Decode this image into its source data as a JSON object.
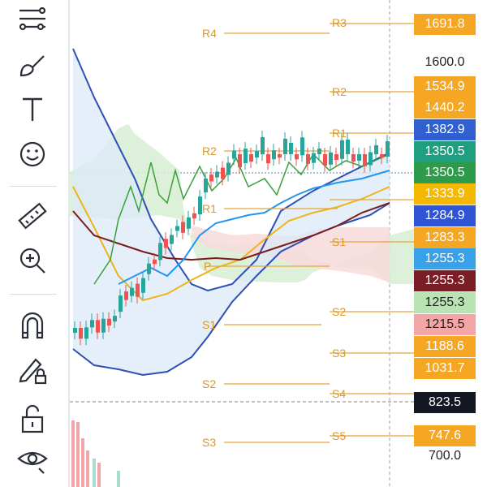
{
  "toolbar": {
    "tools": [
      {
        "name": "trend-line-tool-icon"
      },
      {
        "name": "brush-tool-icon"
      },
      {
        "name": "text-tool-icon"
      },
      {
        "name": "emoji-tool-icon"
      },
      {
        "name": "ruler-tool-icon"
      },
      {
        "name": "zoom-in-tool-icon"
      },
      {
        "name": "magnet-tool-icon"
      },
      {
        "name": "lock-drawings-tool-icon"
      },
      {
        "name": "unlock-tool-icon"
      },
      {
        "name": "hide-drawings-tool-icon"
      }
    ]
  },
  "price_axis": {
    "labels": [
      "1600.0",
      "700.0"
    ],
    "tags": [
      {
        "value": "1691.8",
        "color": "#f5a623",
        "text_color": "#ffffff"
      },
      {
        "value": "1534.9",
        "color": "#f5a623",
        "text_color": "#ffffff"
      },
      {
        "value": "1440.2",
        "color": "#f5a623",
        "text_color": "#ffffff"
      },
      {
        "value": "1382.9",
        "color": "#2f5fd0",
        "text_color": "#ffffff"
      },
      {
        "value": "1350.5",
        "color": "#1f9e80",
        "text_color": "#ffffff"
      },
      {
        "value": "1350.5",
        "color": "#2e9b4a",
        "text_color": "#ffffff"
      },
      {
        "value": "1333.9",
        "color": "#f5b800",
        "text_color": "#ffffff"
      },
      {
        "value": "1284.9",
        "color": "#2f55d4",
        "text_color": "#ffffff"
      },
      {
        "value": "1283.3",
        "color": "#f5a623",
        "text_color": "#ffffff"
      },
      {
        "value": "1255.3",
        "color": "#39a0ea",
        "text_color": "#ffffff"
      },
      {
        "value": "1255.3",
        "color": "#7a1d24",
        "text_color": "#ffffff"
      },
      {
        "value": "1255.3",
        "color": "#b9e3b2",
        "text_color": "#222222"
      },
      {
        "value": "1215.5",
        "color": "#f4a6a6",
        "text_color": "#222222"
      },
      {
        "value": "1188.6",
        "color": "#f5a623",
        "text_color": "#ffffff"
      },
      {
        "value": "1031.7",
        "color": "#f5a623",
        "text_color": "#ffffff"
      },
      {
        "value": "823.5",
        "color": "#131722",
        "text_color": "#ffffff"
      },
      {
        "value": "747.6",
        "color": "#f5a623",
        "text_color": "#ffffff"
      }
    ]
  },
  "pivots": [
    {
      "label": "R3"
    },
    {
      "label": "R4"
    },
    {
      "label": "R2"
    },
    {
      "label": "R1"
    },
    {
      "label": "R2"
    },
    {
      "label": "R1"
    },
    {
      "label": "S1"
    },
    {
      "label": "P"
    },
    {
      "label": "S2"
    },
    {
      "label": "S1"
    },
    {
      "label": "S3"
    },
    {
      "label": "S2"
    },
    {
      "label": "S4"
    },
    {
      "label": "S3"
    },
    {
      "label": "S5"
    }
  ],
  "colors": {
    "pivot": "#e8a33d",
    "candle_up": "#26a69a",
    "candle_down": "#ef5350",
    "bollinger": "#2f4fb5",
    "ma_fast": "#2196f3",
    "ma_slow": "#7b1c1c",
    "ma_yellow": "#f2b21b",
    "green_line": "#3c9e3c"
  }
}
